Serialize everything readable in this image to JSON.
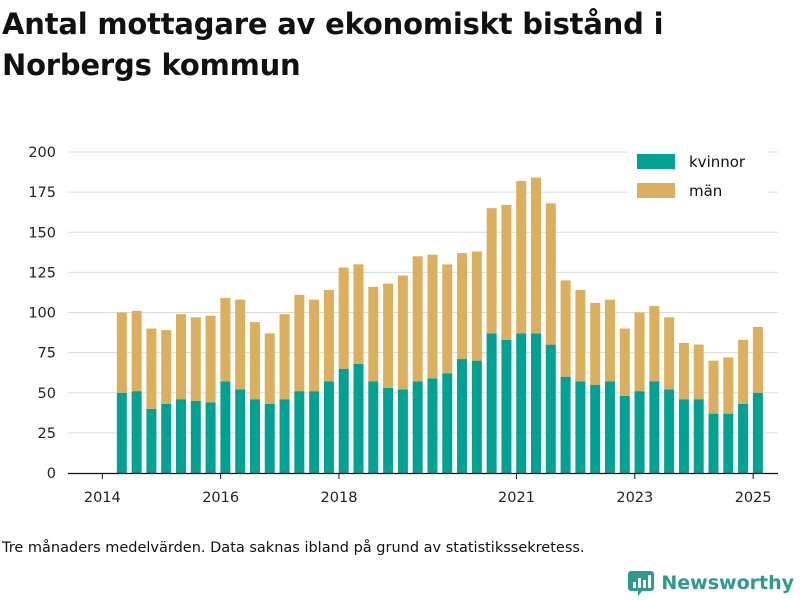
{
  "title": "Antal mottagare av ekonomiskt bistånd i Norbergs kommun",
  "footnote": "Tre månaders medelvärden. Data saknas ibland på grund av statistikssekretess.",
  "brand": {
    "name": "Newsworthy",
    "icon": "newsworthy-logo-icon",
    "color": "#2a9c8d"
  },
  "chart_data": {
    "type": "bar",
    "stacked": true,
    "x_tick_labels": [
      "2014",
      "2016",
      "2018",
      "2021",
      "2023",
      "2025"
    ],
    "x_tick_positions": [
      2014.0,
      2016.0,
      2018.0,
      2021.0,
      2023.0,
      2025.0
    ],
    "x_range": [
      2013.42,
      2025.42
    ],
    "x": [
      2014.33,
      2014.58,
      2014.83,
      2015.08,
      2015.33,
      2015.58,
      2015.83,
      2016.08,
      2016.33,
      2016.58,
      2016.83,
      2017.08,
      2017.33,
      2017.58,
      2017.83,
      2018.08,
      2018.33,
      2018.58,
      2018.83,
      2019.08,
      2019.33,
      2019.58,
      2019.83,
      2020.08,
      2020.33,
      2020.58,
      2020.83,
      2021.08,
      2021.33,
      2021.58,
      2021.83,
      2022.08,
      2022.33,
      2022.58,
      2022.83,
      2023.08,
      2023.33,
      2023.58,
      2023.83,
      2024.08,
      2024.33,
      2024.58,
      2024.83,
      2025.08
    ],
    "series": [
      {
        "name": "kvinnor",
        "color": "#00a294",
        "values": [
          50,
          51,
          40,
          43,
          46,
          45,
          44,
          57,
          52,
          46,
          43,
          46,
          51,
          51,
          57,
          65,
          68,
          57,
          53,
          52,
          57,
          59,
          62,
          71,
          70,
          87,
          83,
          87,
          87,
          80,
          60,
          57,
          55,
          57,
          48,
          51,
          57,
          52,
          46,
          46,
          37,
          37,
          43,
          50
        ]
      },
      {
        "name": "män",
        "color": "#dcaf5c",
        "values": [
          50,
          50,
          50,
          46,
          53,
          52,
          54,
          52,
          56,
          48,
          44,
          53,
          60,
          57,
          57,
          63,
          62,
          59,
          65,
          71,
          78,
          77,
          68,
          66,
          68,
          78,
          84,
          95,
          97,
          88,
          60,
          57,
          51,
          51,
          42,
          49,
          47,
          45,
          35,
          34,
          33,
          35,
          40,
          41
        ]
      }
    ],
    "y_ticks": [
      0,
      25,
      50,
      75,
      100,
      125,
      150,
      175,
      200
    ],
    "ylim": [
      0,
      200
    ],
    "grid": true,
    "legend_position": "top-right"
  }
}
